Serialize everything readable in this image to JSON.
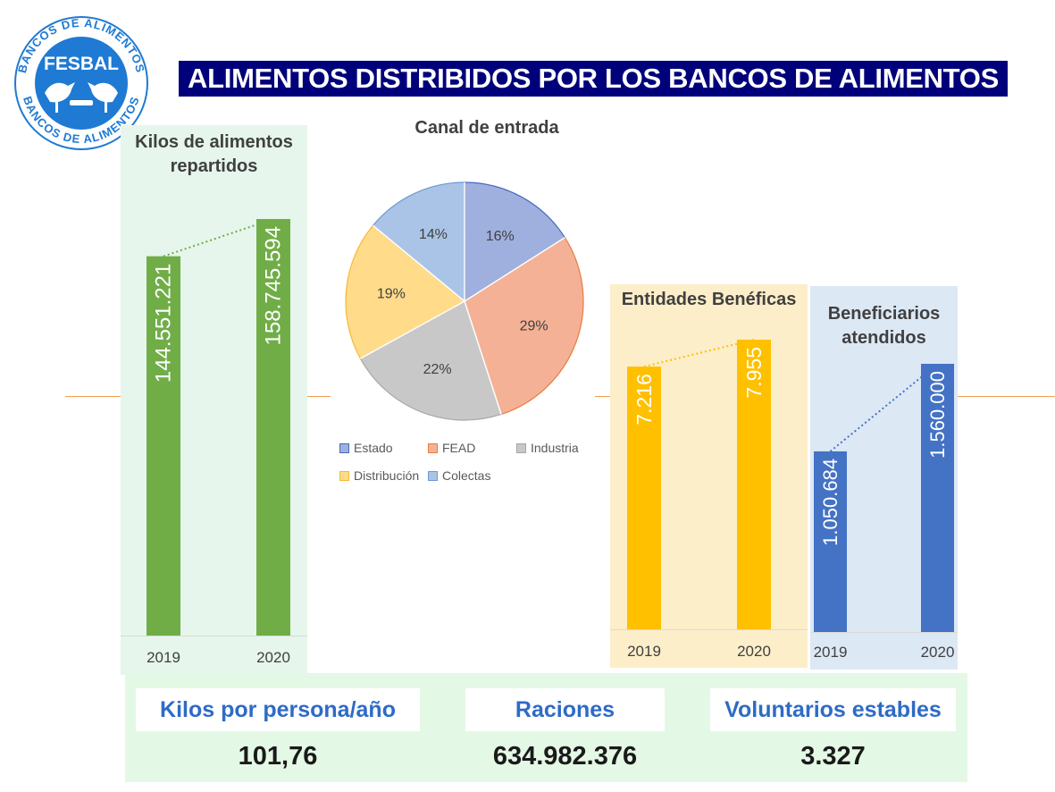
{
  "logo": {
    "name": "FESBAL",
    "ring_text": "BANCOS DE ALIMENTOS",
    "color": "#1f7ad3"
  },
  "title": "ALIMENTOS DISTRIBIDOS POR LOS BANCOS DE ALIMENTOS",
  "colors": {
    "green": "#70ad47",
    "yellow": "#ffc000",
    "blue": "#4472c4",
    "title_bg": "#00007a"
  },
  "chart_data": [
    {
      "type": "bar",
      "title": "Kilos de alimentos repartidos",
      "categories": [
        "2019",
        "2020"
      ],
      "values": [
        144551221,
        158745594
      ],
      "value_labels": [
        "144.551.221",
        "158.745.594"
      ],
      "color": "#70ad47",
      "trendline": "dotted"
    },
    {
      "type": "pie",
      "title": "Canal de entrada",
      "labels": [
        "Estado",
        "FEAD",
        "Industria",
        "Distribución",
        "Colectas"
      ],
      "values": [
        16,
        29,
        22,
        19,
        14
      ],
      "value_labels": [
        "16%",
        "29%",
        "22%",
        "19%",
        "14%"
      ],
      "colors": [
        "#9fb0de",
        "#f4b196",
        "#c8c8c8",
        "#ffdb8a",
        "#a9c4e6"
      ],
      "edge_colors": [
        "#4a68c0",
        "#e97b3f",
        "#a8a8a8",
        "#f5b93a",
        "#6d9ad6"
      ],
      "legend": "bottom"
    },
    {
      "type": "bar",
      "title": "Entidades Benéficas",
      "categories": [
        "2019",
        "2020"
      ],
      "values": [
        7216,
        7955
      ],
      "value_labels": [
        "7.216",
        "7.955"
      ],
      "color": "#ffc000",
      "trendline": "dotted"
    },
    {
      "type": "bar",
      "title": "Beneficiarios atendidos",
      "categories": [
        "2019",
        "2020"
      ],
      "values": [
        1050684,
        1560000
      ],
      "value_labels": [
        "1.050.684",
        "1.560.000"
      ],
      "color": "#4472c4",
      "trendline": "dotted"
    }
  ],
  "kilos": {
    "title": "Kilos de alimentos repartidos"
  },
  "entidades": {
    "title": "Entidades Benéficas"
  },
  "beneficiarios": {
    "title": "Beneficiarios atendidos"
  },
  "pie": {
    "title": "Canal de entrada"
  },
  "stats": [
    {
      "label": "Kilos por persona/año",
      "value": "101,76"
    },
    {
      "label": "Raciones",
      "value": "634.982.376"
    },
    {
      "label": "Voluntarios estables",
      "value": "3.327"
    }
  ]
}
